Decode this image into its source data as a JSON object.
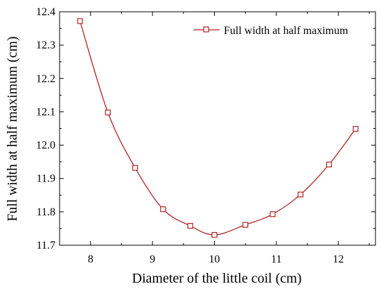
{
  "chart_data": {
    "type": "line",
    "title": "",
    "xlabel": "Diameter of the little coil (cm)",
    "ylabel": "Full width at half maximum (cm)",
    "xlim": [
      7.5,
      12.6
    ],
    "ylim": [
      11.7,
      12.4
    ],
    "x_ticks": [
      8,
      9,
      10,
      11,
      12
    ],
    "x_tick_labels": [
      "8",
      "9",
      "10",
      "11",
      "12"
    ],
    "y_ticks": [
      11.7,
      11.8,
      11.9,
      12.0,
      12.1,
      12.2,
      12.3,
      12.4
    ],
    "y_tick_labels": [
      "11.7",
      "11.8",
      "11.9",
      "12.0",
      "12.1",
      "12.2",
      "12.3",
      "12.4"
    ],
    "grid": false,
    "legend_position": "top-right",
    "series": [
      {
        "name": "Full width at half maximum",
        "color": "#b22222",
        "marker": "open-square",
        "x": [
          7.83,
          8.28,
          8.72,
          9.17,
          9.61,
          10.0,
          10.5,
          10.94,
          11.39,
          11.85,
          12.28
        ],
        "y": [
          12.372,
          12.098,
          11.932,
          11.808,
          11.758,
          11.731,
          11.761,
          11.793,
          11.852,
          11.942,
          12.049
        ]
      }
    ]
  }
}
